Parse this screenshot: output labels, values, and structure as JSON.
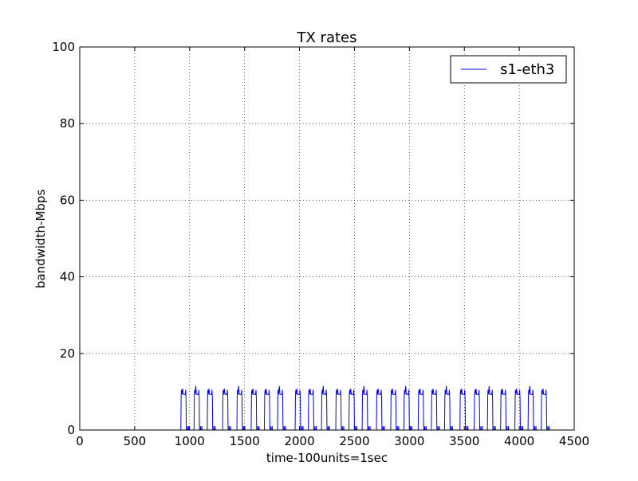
{
  "chart_data": {
    "type": "line",
    "title": "TX rates",
    "xlabel": "time-100units=1sec",
    "ylabel": "bandwidth-Mbps",
    "xlim": [
      0,
      4500
    ],
    "ylim": [
      0,
      100
    ],
    "xticks": [
      0,
      500,
      1000,
      1500,
      2000,
      2500,
      3000,
      3500,
      4000,
      4500
    ],
    "yticks": [
      0,
      20,
      40,
      60,
      80,
      100
    ],
    "grid": true,
    "legend_position": "top-right",
    "colors": {
      "series": "#0000ff"
    },
    "series": [
      {
        "name": "s1-eth3",
        "burst_starts": [
          920,
          1040,
          1160,
          1300,
          1430,
          1560,
          1680,
          1800,
          1960,
          2080,
          2200,
          2330,
          2450,
          2570,
          2700,
          2830,
          2950,
          3080,
          3200,
          3320,
          3460,
          3590,
          3710,
          3830,
          3960,
          4080,
          4200
        ],
        "burst_width": 50,
        "burst_level": 10.5,
        "spike_level": 11.5,
        "idle_level": 0,
        "x_end": 4290
      }
    ]
  }
}
